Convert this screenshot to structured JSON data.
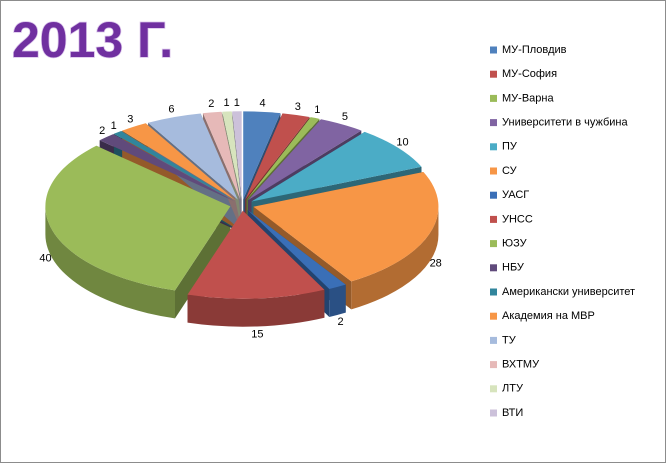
{
  "chart_data": {
    "type": "pie",
    "title": "2013 Г.",
    "categories": [
      "МУ-Пловдив",
      "МУ-София",
      "МУ-Варна",
      "Университети в чужбина",
      "ПУ",
      "СУ",
      "УАСГ",
      "УНСС",
      "ЮЗУ",
      "НБУ",
      "Американски университет",
      "Академия на МВР",
      "ТУ",
      "ВХТМУ",
      "ЛТУ",
      "ВТИ"
    ],
    "values": [
      4,
      3,
      1,
      5,
      10,
      28,
      2,
      15,
      40,
      2,
      1,
      3,
      6,
      2,
      1,
      1
    ],
    "colors": [
      "#4f81bd",
      "#c0504d",
      "#9bbb59",
      "#8064a2",
      "#4bacc6",
      "#f79646",
      "#3a6fb7",
      "#c0504d",
      "#9bbb59",
      "#604a7b",
      "#31859c",
      "#f79646",
      "#a6bbdd",
      "#e6b9b8",
      "#d7e4bd",
      "#ccc1da"
    ],
    "legend": "right"
  }
}
